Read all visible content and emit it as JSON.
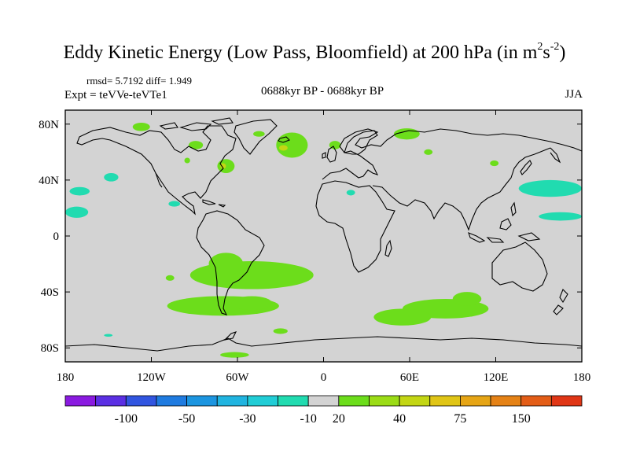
{
  "header": {
    "title_main": "Eddy Kinetic Energy (Low Pass, Bloomfield) at 200 hPa (in m",
    "title_sup1": "2",
    "title_mid": "s",
    "title_sup2": "-2",
    "title_end": ")",
    "rmsd_line": "rmsd= 5.7192 diff= 1.949",
    "expt_line": "Expt = teVVe-teVTe1",
    "center_label": "0688kyr BP - 0688kyr BP",
    "season": "JJA"
  },
  "chart_data": {
    "type": "heatmap",
    "projection": "cylindrical-equidistant",
    "x_range": [
      -180,
      180
    ],
    "y_range": [
      -90,
      90
    ],
    "x_tick_labels": [
      {
        "value": -180,
        "label": "180"
      },
      {
        "value": -120,
        "label": "120W"
      },
      {
        "value": -60,
        "label": "60W"
      },
      {
        "value": 0,
        "label": "0"
      },
      {
        "value": 60,
        "label": "60E"
      },
      {
        "value": 120,
        "label": "120E"
      },
      {
        "value": 180,
        "label": "180"
      }
    ],
    "y_tick_labels": [
      {
        "value": 80,
        "label": "80N"
      },
      {
        "value": 40,
        "label": "40N"
      },
      {
        "value": 0,
        "label": "0"
      },
      {
        "value": -40,
        "label": "40S"
      },
      {
        "value": -80,
        "label": "80S"
      }
    ],
    "background_color": "#d3d3d3",
    "colorbar": {
      "colors": [
        "#8a1ae0",
        "#5b2fe3",
        "#3155e0",
        "#1f7be0",
        "#1c95e0",
        "#20b4e0",
        "#21cdd6",
        "#21dbb0",
        "#d3d3d3",
        "#6cdd1b",
        "#9bdc16",
        "#c3d614",
        "#e0c516",
        "#e6a515",
        "#e58216",
        "#e35d17",
        "#e03616"
      ],
      "tick_labels": [
        "-100",
        "-50",
        "-30",
        "-10",
        "20",
        "40",
        "75",
        "150"
      ]
    },
    "regions": [
      {
        "level": 20,
        "color": "#6cdd1b",
        "lon": -22,
        "lat": 65,
        "rlon": 11,
        "rlat": 9
      },
      {
        "level": 40,
        "color": "#c3d614",
        "lon": -28,
        "lat": 63,
        "rlon": 3,
        "rlat": 2
      },
      {
        "level": 20,
        "color": "#6cdd1b",
        "lon": -68,
        "lat": 50,
        "rlon": 6,
        "rlat": 5
      },
      {
        "level": 40,
        "color": "#c3d614",
        "lon": -70,
        "lat": 50,
        "rlon": 2,
        "rlat": 2
      },
      {
        "level": 20,
        "color": "#6cdd1b",
        "lon": -127,
        "lat": 78,
        "rlon": 6,
        "rlat": 3
      },
      {
        "level": 20,
        "color": "#6cdd1b",
        "lon": -45,
        "lat": 73,
        "rlon": 4,
        "rlat": 2
      },
      {
        "level": 20,
        "color": "#6cdd1b",
        "lon": 58,
        "lat": 73,
        "rlon": 9,
        "rlat": 4
      },
      {
        "level": 20,
        "color": "#6cdd1b",
        "lon": 8,
        "lat": 65,
        "rlon": 4,
        "rlat": 3
      },
      {
        "level": 20,
        "color": "#6cdd1b",
        "lon": -89,
        "lat": 65,
        "rlon": 5,
        "rlat": 3
      },
      {
        "level": 20,
        "color": "#6cdd1b",
        "lon": -95,
        "lat": 54,
        "rlon": 2,
        "rlat": 2
      },
      {
        "level": 20,
        "color": "#6cdd1b",
        "lon": 73,
        "lat": 60,
        "rlon": 3,
        "rlat": 2
      },
      {
        "level": 20,
        "color": "#6cdd1b",
        "lon": 119,
        "lat": 52,
        "rlon": 3,
        "rlat": 2
      },
      {
        "level": -10,
        "color": "#21dbb0",
        "lon": -148,
        "lat": 42,
        "rlon": 5,
        "rlat": 3
      },
      {
        "level": -10,
        "color": "#21dbb0",
        "lon": -170,
        "lat": 32,
        "rlon": 7,
        "rlat": 3
      },
      {
        "level": -10,
        "color": "#21dbb0",
        "lon": -172,
        "lat": 17,
        "rlon": 8,
        "rlat": 4
      },
      {
        "level": -10,
        "color": "#21dbb0",
        "lon": -104,
        "lat": 23,
        "rlon": 4,
        "rlat": 2
      },
      {
        "level": -10,
        "color": "#21dbb0",
        "lon": 158,
        "lat": 34,
        "rlon": 22,
        "rlat": 6
      },
      {
        "level": -10,
        "color": "#21dbb0",
        "lon": 165,
        "lat": 14,
        "rlon": 15,
        "rlat": 3
      },
      {
        "level": -10,
        "color": "#21dbb0",
        "lon": 19,
        "lat": 31,
        "rlon": 3,
        "rlat": 2
      },
      {
        "level": -10,
        "color": "#21dbb0",
        "lon": -150,
        "lat": -71,
        "rlon": 3,
        "rlat": 1
      },
      {
        "level": 20,
        "color": "#6cdd1b",
        "lon": -50,
        "lat": -28,
        "rlon": 43,
        "rlat": 10
      },
      {
        "level": 20,
        "color": "#6cdd1b",
        "lon": -68,
        "lat": -20,
        "rlon": 12,
        "rlat": 8
      },
      {
        "level": 20,
        "color": "#6cdd1b",
        "lon": -70,
        "lat": -50,
        "rlon": 39,
        "rlat": 7
      },
      {
        "level": 20,
        "color": "#6cdd1b",
        "lon": -50,
        "lat": -48,
        "rlon": 14,
        "rlat": 5
      },
      {
        "level": 20,
        "color": "#6cdd1b",
        "lon": 85,
        "lat": -52,
        "rlon": 30,
        "rlat": 7
      },
      {
        "level": 20,
        "color": "#6cdd1b",
        "lon": 55,
        "lat": -58,
        "rlon": 20,
        "rlat": 6
      },
      {
        "level": 20,
        "color": "#6cdd1b",
        "lon": 100,
        "lat": -45,
        "rlon": 10,
        "rlat": 5
      },
      {
        "level": 20,
        "color": "#6cdd1b",
        "lon": -107,
        "lat": -30,
        "rlon": 3,
        "rlat": 2
      },
      {
        "level": 20,
        "color": "#6cdd1b",
        "lon": -62,
        "lat": -85,
        "rlon": 10,
        "rlat": 2
      },
      {
        "level": 20,
        "color": "#6cdd1b",
        "lon": -30,
        "lat": -68,
        "rlon": 5,
        "rlat": 2
      }
    ]
  }
}
